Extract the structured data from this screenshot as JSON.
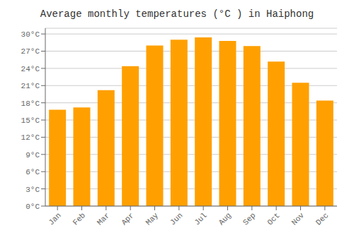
{
  "chart_data": {
    "type": "bar",
    "title": "Average monthly temperatures (°C ) in Haiphong",
    "categories": [
      "Jan",
      "Feb",
      "Mar",
      "Apr",
      "May",
      "Jun",
      "Jul",
      "Aug",
      "Sep",
      "Oct",
      "Nov",
      "Dec"
    ],
    "values": [
      16.8,
      17.2,
      20.2,
      24.4,
      28.0,
      29.0,
      29.4,
      28.8,
      27.9,
      25.2,
      21.5,
      18.4
    ],
    "color": "#FFA000",
    "ylim": [
      0,
      31
    ],
    "yticks": [
      {
        "value": 0,
        "label": "0°C"
      },
      {
        "value": 3,
        "label": "3°C"
      },
      {
        "value": 6,
        "label": "6°C"
      },
      {
        "value": 9,
        "label": "9°C"
      },
      {
        "value": 12,
        "label": "12°C"
      },
      {
        "value": 15,
        "label": "15°C"
      },
      {
        "value": 18,
        "label": "18°C"
      },
      {
        "value": 21,
        "label": "21°C"
      },
      {
        "value": 24,
        "label": "24°C"
      },
      {
        "value": 27,
        "label": "27°C"
      },
      {
        "value": 30,
        "label": "30°C"
      }
    ],
    "grid": true
  }
}
